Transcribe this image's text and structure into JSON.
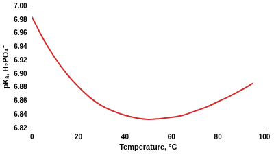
{
  "chart_data": {
    "type": "line",
    "x_label": "Temperature, °C",
    "y_label": "pKₐ, H₂PO₄⁻",
    "x": [
      0,
      5,
      10,
      15,
      20,
      25,
      30,
      35,
      40,
      45,
      50,
      55,
      60,
      65,
      70,
      75,
      80,
      85,
      90,
      95
    ],
    "values": [
      6.984,
      6.951,
      6.923,
      6.9,
      6.881,
      6.865,
      6.853,
      6.845,
      6.839,
      6.835,
      6.833,
      6.834,
      6.836,
      6.839,
      6.845,
      6.851,
      6.859,
      6.867,
      6.876,
      6.886
    ],
    "color": "#d42a2a",
    "xlim": [
      0,
      100
    ],
    "xticks": [
      0,
      20,
      40,
      60,
      80,
      100
    ],
    "ylim": [
      6.82,
      7.0
    ],
    "yticks": [
      6.82,
      6.84,
      6.86,
      6.88,
      {
        "value": 6.9,
        "label": "6.90"
      },
      6.92,
      6.94,
      6.96,
      6.98,
      {
        "value": 7.0,
        "label": "7.00"
      }
    ],
    "grid": false
  }
}
